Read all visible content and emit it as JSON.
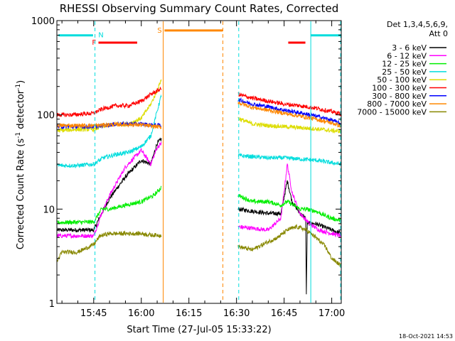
{
  "chart_data": {
    "type": "line",
    "title": "RHESSI Observing Summary Count Rates, Corrected",
    "xlabel": "Start Time (27-Jul-05 15:33:22)",
    "ylabel_main": "Corrected Count Rate (s",
    "ylabel_sup1": "-1",
    "ylabel_mid": " detector",
    "ylabel_sup2": "-1",
    "ylabel_end": ")",
    "x_unit": "minutes after 15:00 UT",
    "xlim": [
      33.4,
      123
    ],
    "ylim": [
      1,
      1000
    ],
    "yscale": "log",
    "x_ticks": [
      {
        "value": 45,
        "label": "15:45"
      },
      {
        "value": 60,
        "label": "16:00"
      },
      {
        "value": 75,
        "label": "16:15"
      },
      {
        "value": 90,
        "label": "16:30"
      },
      {
        "value": 105,
        "label": "16:45"
      },
      {
        "value": 120,
        "label": "17:00"
      }
    ],
    "y_ticks": [
      {
        "value": 1,
        "label": "1"
      },
      {
        "value": 10,
        "label": "10"
      },
      {
        "value": 100,
        "label": "100"
      },
      {
        "value": 1000,
        "label": "1000"
      }
    ],
    "legend_header": [
      "Det 1,3,4,5,6,9,",
      "Att 0"
    ],
    "legend_placement": "right",
    "gaps": [
      [
        66.5,
        90.5
      ]
    ],
    "series": [
      {
        "name": "3 - 6 keV",
        "color": "#000000",
        "points": [
          [
            33.5,
            6
          ],
          [
            45,
            6
          ],
          [
            47.5,
            9
          ],
          [
            50,
            13
          ],
          [
            55,
            22
          ],
          [
            60,
            33
          ],
          [
            63,
            30
          ],
          [
            65,
            50
          ],
          [
            66.3,
            55
          ],
          [
            90.5,
            10
          ],
          [
            100,
            9
          ],
          [
            104,
            9
          ],
          [
            106,
            20
          ],
          [
            107.5,
            12
          ],
          [
            110,
            9
          ],
          [
            111.8,
            8
          ],
          [
            112,
            1.2
          ],
          [
            112.3,
            7
          ],
          [
            115,
            7
          ],
          [
            120,
            6
          ],
          [
            123,
            5.5
          ]
        ]
      },
      {
        "name": "6 - 12 keV",
        "color": "#ff00ff",
        "points": [
          [
            33.5,
            5.2
          ],
          [
            45,
            5.2
          ],
          [
            47.5,
            9
          ],
          [
            50,
            14
          ],
          [
            55,
            28
          ],
          [
            60,
            42
          ],
          [
            63,
            30
          ],
          [
            65,
            45
          ],
          [
            66.3,
            50
          ],
          [
            90.5,
            6.5
          ],
          [
            100,
            6
          ],
          [
            104,
            8
          ],
          [
            106,
            30
          ],
          [
            107.5,
            15
          ],
          [
            110,
            9
          ],
          [
            113,
            7
          ],
          [
            116,
            6
          ],
          [
            120,
            5.5
          ],
          [
            123,
            5.2
          ]
        ]
      },
      {
        "name": "12 - 25 keV",
        "color": "#00ee00",
        "points": [
          [
            33.5,
            7.2
          ],
          [
            45,
            7.3
          ],
          [
            47.5,
            10
          ],
          [
            50,
            10
          ],
          [
            55,
            11
          ],
          [
            60,
            12
          ],
          [
            64,
            14
          ],
          [
            66.3,
            17
          ],
          [
            90.5,
            14
          ],
          [
            95,
            12
          ],
          [
            100,
            12
          ],
          [
            104,
            11
          ],
          [
            106,
            12
          ],
          [
            108,
            11
          ],
          [
            110,
            10
          ],
          [
            112,
            10
          ],
          [
            115,
            9.5
          ],
          [
            118,
            8.5
          ],
          [
            120,
            8
          ],
          [
            123,
            7.5
          ]
        ]
      },
      {
        "name": "25 - 50 keV",
        "color": "#00dddd",
        "points": [
          [
            33.5,
            29
          ],
          [
            40,
            29
          ],
          [
            45,
            30
          ],
          [
            48,
            35
          ],
          [
            52,
            38
          ],
          [
            56,
            40
          ],
          [
            60,
            46
          ],
          [
            63,
            60
          ],
          [
            65,
            110
          ],
          [
            66.3,
            160
          ],
          [
            90.5,
            37
          ],
          [
            95,
            36
          ],
          [
            100,
            35
          ],
          [
            105,
            35
          ],
          [
            110,
            34
          ],
          [
            115,
            33
          ],
          [
            120,
            31
          ],
          [
            123,
            30
          ]
        ]
      },
      {
        "name": "50 - 100 keV",
        "color": "#dddd00",
        "points": [
          [
            33.5,
            68
          ],
          [
            40,
            70
          ],
          [
            45,
            70
          ],
          [
            47.5,
            75
          ],
          [
            52,
            80
          ],
          [
            56,
            80
          ],
          [
            60,
            92
          ],
          [
            63,
            130
          ],
          [
            65,
            180
          ],
          [
            66.3,
            240
          ],
          [
            90.5,
            92
          ],
          [
            95,
            80
          ],
          [
            100,
            77
          ],
          [
            105,
            75
          ],
          [
            110,
            73
          ],
          [
            115,
            71
          ],
          [
            120,
            68
          ],
          [
            123,
            67
          ]
        ]
      },
      {
        "name": "100 - 300 keV",
        "color": "#ff0000",
        "points": [
          [
            33.5,
            100
          ],
          [
            38,
            100
          ],
          [
            43,
            103
          ],
          [
            45,
            104
          ],
          [
            47.5,
            115
          ],
          [
            52,
            125
          ],
          [
            56,
            125
          ],
          [
            60,
            140
          ],
          [
            63,
            165
          ],
          [
            65,
            180
          ],
          [
            66.3,
            190
          ],
          [
            90.5,
            165
          ],
          [
            95,
            150
          ],
          [
            100,
            140
          ],
          [
            105,
            130
          ],
          [
            110,
            125
          ],
          [
            115,
            118
          ],
          [
            120,
            108
          ],
          [
            123,
            102
          ]
        ]
      },
      {
        "name": "300 - 800 keV",
        "color": "#0000ff",
        "points": [
          [
            33.5,
            75
          ],
          [
            45,
            75
          ],
          [
            48,
            77
          ],
          [
            52,
            80
          ],
          [
            56,
            80
          ],
          [
            60,
            80
          ],
          [
            63,
            78
          ],
          [
            66.3,
            77
          ],
          [
            90.5,
            145
          ],
          [
            95,
            130
          ],
          [
            100,
            122
          ],
          [
            105,
            112
          ],
          [
            110,
            105
          ],
          [
            115,
            97
          ],
          [
            120,
            88
          ],
          [
            123,
            80
          ]
        ]
      },
      {
        "name": "800 - 7000 keV",
        "color": "#ff8800",
        "points": [
          [
            33.5,
            77
          ],
          [
            45,
            77
          ],
          [
            48,
            78
          ],
          [
            52,
            79
          ],
          [
            56,
            79
          ],
          [
            60,
            78
          ],
          [
            63,
            76
          ],
          [
            66.3,
            74
          ],
          [
            90.5,
            135
          ],
          [
            95,
            120
          ],
          [
            100,
            112
          ],
          [
            105,
            104
          ],
          [
            110,
            97
          ],
          [
            115,
            90
          ],
          [
            120,
            82
          ],
          [
            123,
            76
          ]
        ]
      },
      {
        "name": "7000 - 15000 keV",
        "color": "#888800",
        "points": [
          [
            33.5,
            2.8
          ],
          [
            35,
            3.5
          ],
          [
            40,
            3.5
          ],
          [
            45,
            4.2
          ],
          [
            47,
            5.2
          ],
          [
            50,
            5.5
          ],
          [
            55,
            5.5
          ],
          [
            60,
            5.5
          ],
          [
            63,
            5.3
          ],
          [
            66.3,
            5.3
          ],
          [
            90.5,
            4
          ],
          [
            95,
            3.7
          ],
          [
            100,
            4.5
          ],
          [
            103,
            5
          ],
          [
            106,
            6
          ],
          [
            109,
            6.5
          ],
          [
            112,
            6
          ],
          [
            115,
            5
          ],
          [
            118,
            4
          ],
          [
            120,
            3
          ],
          [
            123,
            2.5
          ]
        ]
      }
    ],
    "flag_markers": [
      {
        "label": "N",
        "color": "#00dddd",
        "y_frac": 0.052,
        "segments": [
          [
            33.9,
            44.8
          ],
          [
            113.4,
            123
          ]
        ],
        "label_at": 46,
        "label_side": "right"
      },
      {
        "label": "F",
        "color": "#ff0000",
        "y_frac": 0.078,
        "segments": [
          [
            46.5,
            58.7
          ],
          [
            106.3,
            111.7
          ]
        ],
        "label_at": 46.2,
        "label_side": "left"
      },
      {
        "label": "S",
        "color": "#ff8800",
        "y_frac": 0.035,
        "segments": [
          [
            67.3,
            85.6
          ]
        ],
        "label_at": 66.9,
        "label_side": "left"
      }
    ],
    "vertical_markers": [
      {
        "x": 45.4,
        "color": "#00dddd",
        "style": "dashed"
      },
      {
        "x": 66.9,
        "color": "#ff8800",
        "style": "solid"
      },
      {
        "x": 85.7,
        "color": "#ff8800",
        "style": "dashed"
      },
      {
        "x": 90.7,
        "color": "#00dddd",
        "style": "dashed"
      },
      {
        "x": 113.4,
        "color": "#00dddd",
        "style": "solid"
      },
      {
        "x": 122.8,
        "color": "#00dddd",
        "style": "dashed"
      }
    ],
    "timestamp": "18-Oct-2021 14:53"
  }
}
